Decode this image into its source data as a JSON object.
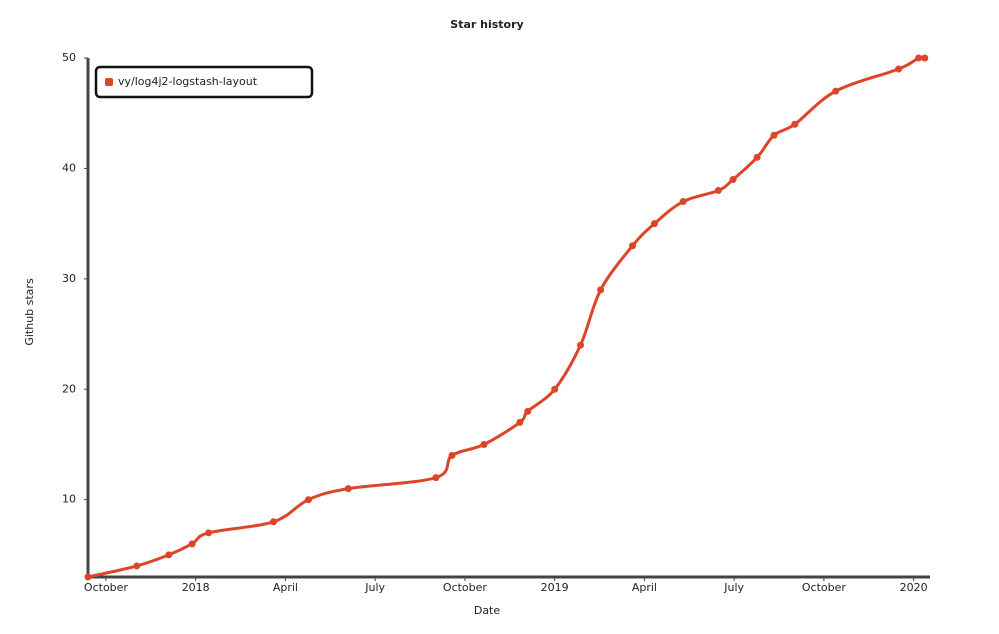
{
  "chart_data": {
    "type": "line",
    "title": "Star history",
    "x_label": "Date",
    "y_label": "Github stars",
    "series": [
      {
        "name": "vy/log4j2-logstash-layout",
        "color": "#dd4528",
        "x": [
          2017.7,
          2017.836,
          2017.925,
          2017.99,
          2018.036,
          2018.217,
          2018.314,
          2018.425,
          2018.669,
          2018.714,
          2018.803,
          2018.903,
          2018.925,
          2019.0,
          2019.072,
          2019.128,
          2019.217,
          2019.278,
          2019.358,
          2019.456,
          2019.497,
          2019.564,
          2019.611,
          2019.669,
          2019.783,
          2019.958,
          2020.014,
          2020.031
        ],
        "values": [
          3,
          4,
          5,
          6,
          7,
          8,
          10,
          11,
          12,
          14,
          15,
          17,
          18,
          20,
          24,
          29,
          33,
          35,
          37,
          38,
          39,
          41,
          43,
          44,
          47,
          49,
          50,
          50
        ]
      }
    ],
    "xlim": [
      2017.7,
      2020.04
    ],
    "xticks": [
      {
        "value": 2017.75,
        "label": "October"
      },
      2018,
      {
        "value": 2018.25,
        "label": "April"
      },
      {
        "value": 2018.5,
        "label": "July"
      },
      {
        "value": 2018.75,
        "label": "October"
      },
      2019,
      {
        "value": 2019.25,
        "label": "April"
      },
      {
        "value": 2019.5,
        "label": "July"
      },
      {
        "value": 2019.75,
        "label": "October"
      },
      2020
    ],
    "ylim": [
      3,
      50
    ],
    "yticks": [
      10,
      20,
      30,
      40,
      50
    ],
    "legend": "top-left"
  }
}
